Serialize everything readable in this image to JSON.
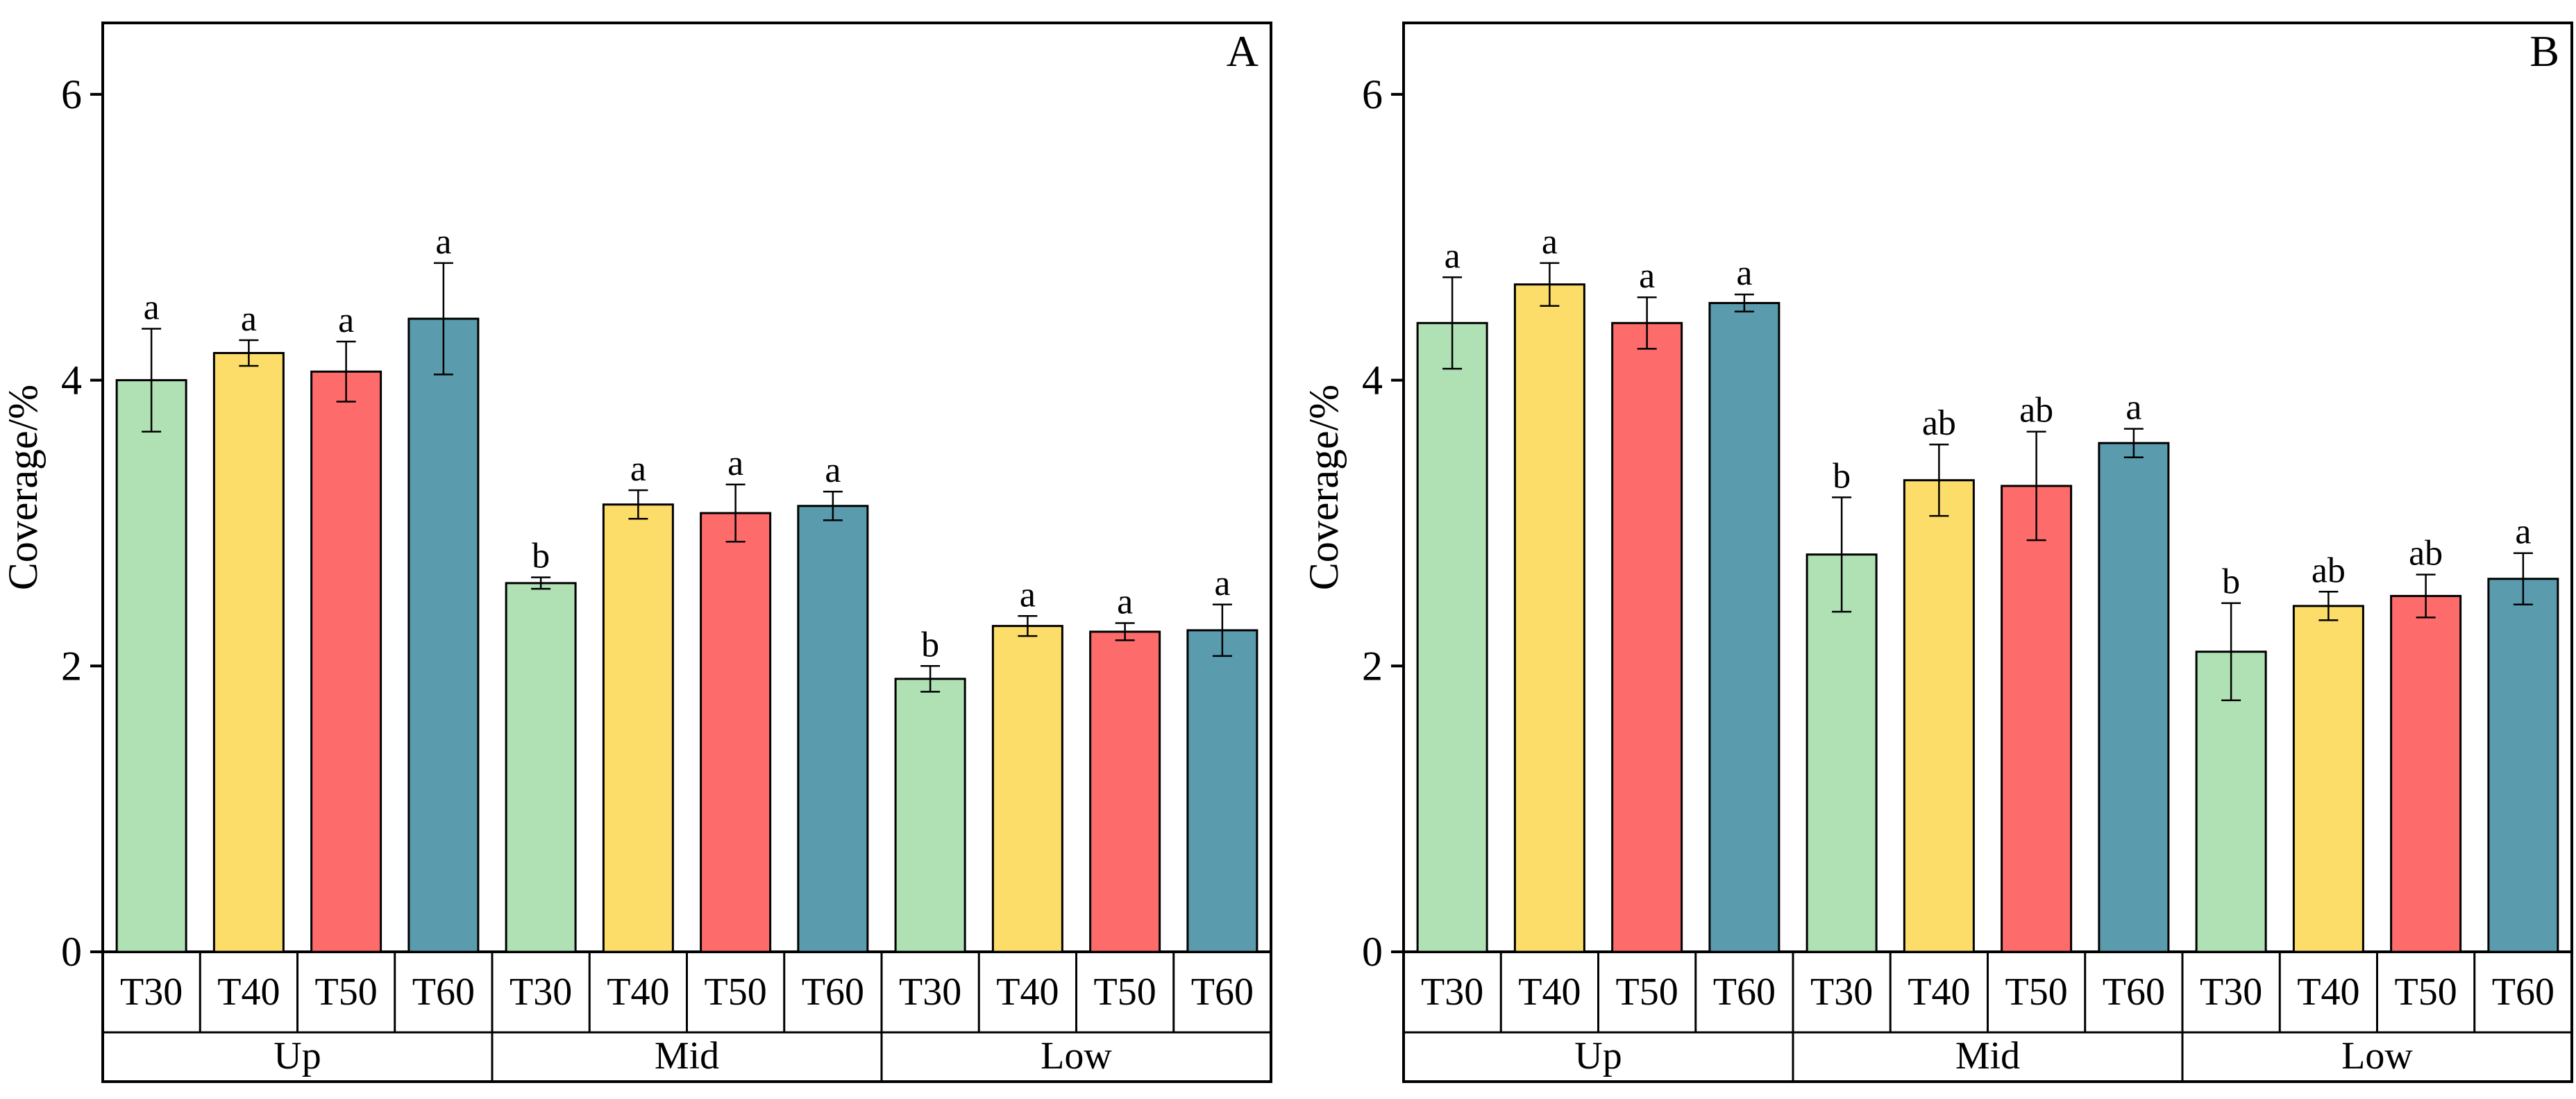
{
  "colors": {
    "T30": "#b0e1b5",
    "T40": "#fddd6a",
    "T50": "#fe6b6b",
    "T60": "#5a9bae",
    "axis": "#000000"
  },
  "chart_data": [
    {
      "type": "bar",
      "panel_label": "A",
      "ylabel": "Coverage/%",
      "ylim": [
        0,
        6.5
      ],
      "yticks": [
        0,
        2,
        4,
        6
      ],
      "groups": [
        "Up",
        "Mid",
        "Low"
      ],
      "categories": [
        "T30",
        "T40",
        "T50",
        "T60"
      ],
      "series": [
        {
          "group": "Up",
          "values": [
            4.0,
            4.19,
            4.06,
            4.43
          ],
          "errors": [
            0.36,
            0.09,
            0.21,
            0.39
          ],
          "letters": [
            "a",
            "a",
            "a",
            "a"
          ]
        },
        {
          "group": "Mid",
          "values": [
            2.58,
            3.13,
            3.07,
            3.12
          ],
          "errors": [
            0.04,
            0.1,
            0.2,
            0.1
          ],
          "letters": [
            "b",
            "a",
            "a",
            "a"
          ]
        },
        {
          "group": "Low",
          "values": [
            1.91,
            2.28,
            2.24,
            2.25
          ],
          "errors": [
            0.09,
            0.07,
            0.06,
            0.18
          ],
          "letters": [
            "b",
            "a",
            "a",
            "a"
          ]
        }
      ]
    },
    {
      "type": "bar",
      "panel_label": "B",
      "ylabel": "Coverage/%",
      "ylim": [
        0,
        6.5
      ],
      "yticks": [
        0,
        2,
        4,
        6
      ],
      "groups": [
        "Up",
        "Mid",
        "Low"
      ],
      "categories": [
        "T30",
        "T40",
        "T50",
        "T60"
      ],
      "series": [
        {
          "group": "Up",
          "values": [
            4.4,
            4.67,
            4.4,
            4.54
          ],
          "errors": [
            0.32,
            0.15,
            0.18,
            0.06
          ],
          "letters": [
            "a",
            "a",
            "a",
            "a"
          ]
        },
        {
          "group": "Mid",
          "values": [
            2.78,
            3.3,
            3.26,
            3.56
          ],
          "errors": [
            0.4,
            0.25,
            0.38,
            0.1
          ],
          "letters": [
            "b",
            "ab",
            "ab",
            "a"
          ]
        },
        {
          "group": "Low",
          "values": [
            2.1,
            2.42,
            2.49,
            2.61
          ],
          "errors": [
            0.34,
            0.1,
            0.15,
            0.18
          ],
          "letters": [
            "b",
            "ab",
            "ab",
            "a"
          ]
        }
      ]
    }
  ]
}
